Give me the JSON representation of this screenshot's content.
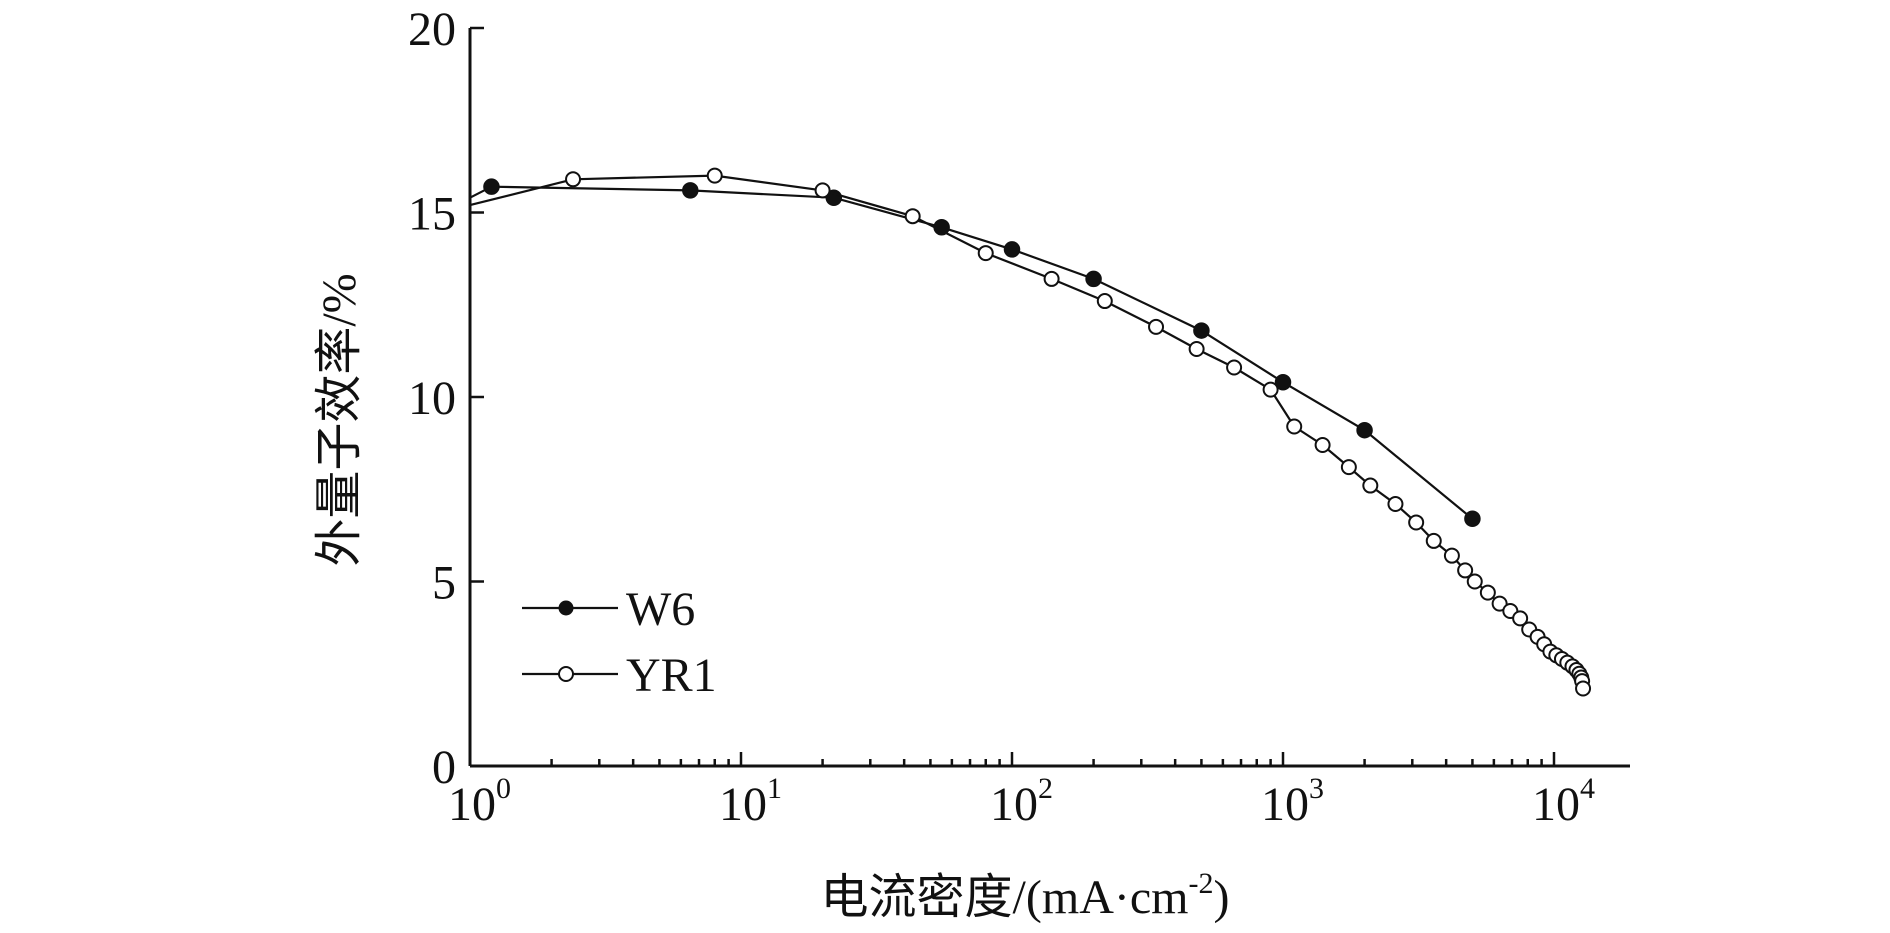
{
  "chart_data": {
    "type": "line",
    "title": "",
    "xlabel": "电流密度/(mA·cm-2)",
    "xlabel_parts": {
      "main": "电流密度/(mA·cm",
      "sup": "-2",
      "close": ")"
    },
    "ylabel": "外量子效率/%",
    "x_scale": "log",
    "xlim": [
      1,
      20000
    ],
    "ylim": [
      0,
      20
    ],
    "x_ticks": [
      {
        "value": 1,
        "base": "10",
        "exp": "0"
      },
      {
        "value": 10,
        "base": "10",
        "exp": "1"
      },
      {
        "value": 100,
        "base": "10",
        "exp": "2"
      },
      {
        "value": 1000,
        "base": "10",
        "exp": "3"
      },
      {
        "value": 10000,
        "base": "10",
        "exp": "4"
      }
    ],
    "y_ticks": [
      {
        "value": 0,
        "label": "0"
      },
      {
        "value": 5,
        "label": "5"
      },
      {
        "value": 10,
        "label": "10"
      },
      {
        "value": 15,
        "label": "15"
      },
      {
        "value": 20,
        "label": "20"
      }
    ],
    "grid": false,
    "legend_position": "lower-left",
    "series": [
      {
        "name": "W6",
        "marker": "filled-circle",
        "color": "#111111",
        "x": [
          1.0,
          1.2,
          6.5,
          22,
          55,
          100,
          200,
          500,
          1000,
          2000,
          5000
        ],
        "y": [
          15.4,
          15.7,
          15.6,
          15.4,
          14.6,
          14.0,
          13.2,
          11.8,
          10.4,
          9.1,
          6.7
        ]
      },
      {
        "name": "YR1",
        "marker": "open-circle",
        "color": "#111111",
        "x": [
          1.0,
          2.4,
          8.0,
          20,
          43,
          80,
          140,
          220,
          340,
          480,
          660,
          900,
          1100,
          1400,
          1750,
          2100,
          2600,
          3100,
          3600,
          4200,
          4700,
          5100,
          5700,
          6300,
          6900,
          7500,
          8100,
          8700,
          9200,
          9700,
          10200,
          10700,
          11200,
          11700,
          12100,
          12400,
          12600,
          12700,
          12800
        ],
        "y": [
          15.2,
          15.9,
          16.0,
          15.6,
          14.9,
          13.9,
          13.2,
          12.6,
          11.9,
          11.3,
          10.8,
          10.2,
          9.2,
          8.7,
          8.1,
          7.6,
          7.1,
          6.6,
          6.1,
          5.7,
          5.3,
          5.0,
          4.7,
          4.4,
          4.2,
          4.0,
          3.7,
          3.5,
          3.3,
          3.1,
          3.0,
          2.9,
          2.8,
          2.7,
          2.6,
          2.5,
          2.4,
          2.3,
          2.1
        ]
      }
    ]
  }
}
